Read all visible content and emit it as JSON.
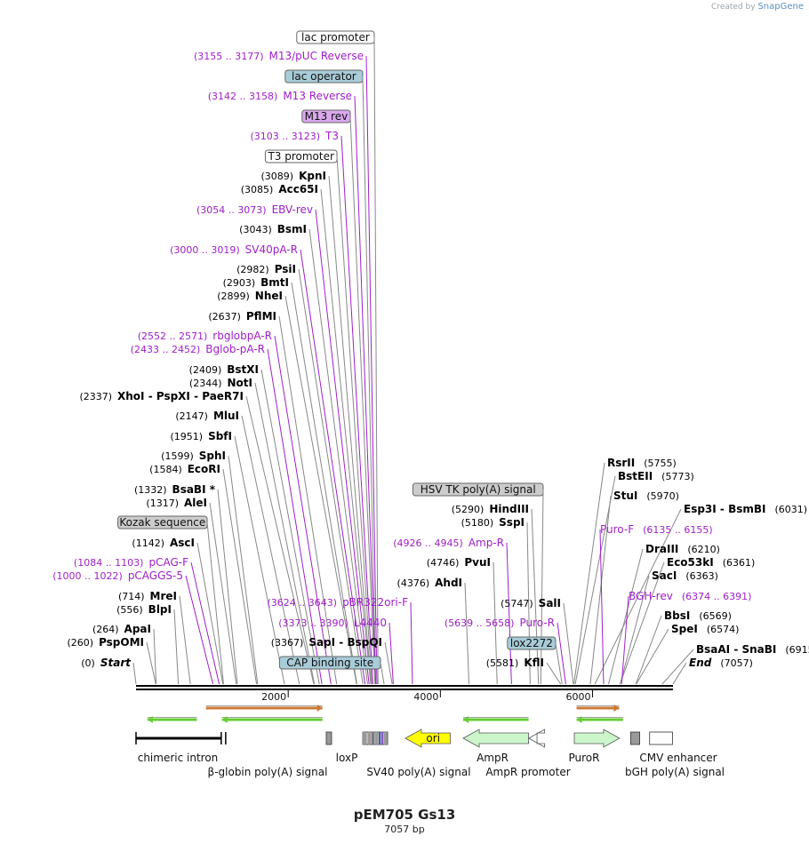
{
  "credit": {
    "prefix": "Created by",
    "brand": "SnapGene"
  },
  "map": {
    "name": "pEM705 Gs13",
    "length_label": "7057 bp",
    "length": 7057,
    "ruler_ticks": [
      "2000",
      "4000",
      "6000"
    ],
    "colors": {
      "enzyme": "#000000",
      "primer": "#a020c8",
      "backbone": "#000000",
      "leader_gray": "#888888"
    },
    "labels": [
      {
        "kind": "boxed",
        "text": "lac promoter",
        "box": "white",
        "pos": 3180
      },
      {
        "kind": "primer",
        "range": "(3155 .. 3177)",
        "text": "M13/pUC Reverse",
        "pos": 3166
      },
      {
        "kind": "boxed",
        "text": "lac operator",
        "box": "teal",
        "pos": 3150
      },
      {
        "kind": "primer",
        "range": "(3142 .. 3158)",
        "text": "M13 Reverse",
        "pos": 3150
      },
      {
        "kind": "boxed",
        "text": "M13 rev",
        "box": "violet",
        "pos": 3140
      },
      {
        "kind": "primer",
        "range": "(3103 .. 3123)",
        "text": "T3",
        "pos": 3113
      },
      {
        "kind": "boxed",
        "text": "T3 promoter",
        "box": "white",
        "pos": 3100
      },
      {
        "kind": "enzyme",
        "range": "(3089)",
        "text": "KpnI",
        "pos": 3089
      },
      {
        "kind": "enzyme",
        "range": "(3085)",
        "text": "Acc65I",
        "pos": 3085
      },
      {
        "kind": "primer",
        "range": "(3054 .. 3073)",
        "text": "EBV-rev",
        "pos": 3063
      },
      {
        "kind": "enzyme",
        "range": "(3043)",
        "text": "BsmI",
        "pos": 3043
      },
      {
        "kind": "primer",
        "range": "(3000 .. 3019)",
        "text": "SV40pA-R",
        "pos": 3010
      },
      {
        "kind": "enzyme",
        "range": "(2982)",
        "text": "PsiI",
        "pos": 2982
      },
      {
        "kind": "enzyme",
        "range": "(2903)",
        "text": "BmtI",
        "pos": 2903
      },
      {
        "kind": "enzyme",
        "range": "(2899)",
        "text": "NheI",
        "pos": 2899
      },
      {
        "kind": "enzyme",
        "range": "(2637)",
        "text": "PflMI",
        "pos": 2637
      },
      {
        "kind": "primer",
        "range": "(2552 .. 2571)",
        "text": "rbglobpA-R",
        "pos": 2562
      },
      {
        "kind": "primer",
        "range": "(2433 .. 2452)",
        "text": "Bglob-pA-R",
        "pos": 2443
      },
      {
        "kind": "enzyme",
        "range": "(2409)",
        "text": "BstXI",
        "pos": 2409
      },
      {
        "kind": "enzyme",
        "range": "(2344)",
        "text": "NotI",
        "pos": 2344
      },
      {
        "kind": "enzyme",
        "range": "(2337)",
        "text": "XhoI  -  PspXI  -  PaeR7I",
        "pos": 2337
      },
      {
        "kind": "enzyme",
        "range": "(2147)",
        "text": "MluI",
        "pos": 2147
      },
      {
        "kind": "enzyme",
        "range": "(1951)",
        "text": "SbfI",
        "pos": 1951
      },
      {
        "kind": "enzyme",
        "range": "(1599)",
        "text": "SphI",
        "pos": 1599
      },
      {
        "kind": "enzyme",
        "range": "(1584)",
        "text": "EcoRI",
        "pos": 1584
      },
      {
        "kind": "enzyme",
        "range": "(1332)",
        "text": "BsaBI *",
        "pos": 1332
      },
      {
        "kind": "enzyme",
        "range": "(1317)",
        "text": "AleI",
        "pos": 1317
      },
      {
        "kind": "boxed",
        "text": "Kozak sequence",
        "box": "gray",
        "pos": 1150
      },
      {
        "kind": "enzyme",
        "range": "(1142)",
        "text": "AscI",
        "pos": 1142
      },
      {
        "kind": "primer",
        "range": "(1084 .. 1103)",
        "text": "pCAG-F",
        "pos": 1093
      },
      {
        "kind": "primer",
        "range": "(1000 .. 1022)",
        "text": "pCAGGS-5",
        "pos": 1011
      },
      {
        "kind": "enzyme",
        "range": "(714)",
        "text": "MreI",
        "pos": 714
      },
      {
        "kind": "enzyme",
        "range": "(556)",
        "text": "BlpI",
        "pos": 556
      },
      {
        "kind": "enzyme",
        "range": "(264)",
        "text": "ApaI",
        "pos": 264
      },
      {
        "kind": "enzyme",
        "range": "(260)",
        "text": "PspOMI",
        "pos": 260
      },
      {
        "kind": "enzyme",
        "range": "(0)",
        "text": "Start",
        "pos": 0
      },
      {
        "kind": "primer",
        "range": "(3624 .. 3643)",
        "text": "pBR322ori-F",
        "pos": 3633
      },
      {
        "kind": "primer",
        "range": "(3373 .. 3390)",
        "text": "L4440",
        "pos": 3381
      },
      {
        "kind": "enzyme",
        "range": "(3367)",
        "text": "SapI  -  BspQI",
        "pos": 3367
      },
      {
        "kind": "boxed",
        "text": "CAP binding site",
        "box": "teal",
        "pos": 3260
      },
      {
        "kind": "enzyme",
        "range": "(4376)",
        "text": "AhdI",
        "pos": 4376
      },
      {
        "kind": "enzyme",
        "range": "(4746)",
        "text": "PvuI",
        "pos": 4746
      },
      {
        "kind": "primer",
        "range": "(4926 .. 4945)",
        "text": "Amp-R",
        "pos": 4935
      },
      {
        "kind": "enzyme",
        "range": "(5180)",
        "text": "SspI",
        "pos": 5180
      },
      {
        "kind": "enzyme",
        "range": "(5290)",
        "text": "HindIII",
        "pos": 5290
      },
      {
        "kind": "boxed",
        "text": "HSV TK poly(A) signal",
        "box": "gray",
        "pos": 5320
      },
      {
        "kind": "enzyme",
        "range": "(5747)",
        "text": "SalI",
        "pos": 5747
      },
      {
        "kind": "primer",
        "range": "(5639 .. 5658)",
        "text": "Puro-R",
        "pos": 5648
      },
      {
        "kind": "boxed",
        "text": "lox2272",
        "box": "teal",
        "pos": 5600
      },
      {
        "kind": "enzyme",
        "range": "(5581)",
        "text": "KflI",
        "pos": 5581
      },
      {
        "kind": "enzyme",
        "range": "(5755)",
        "text": "RsrII",
        "pos": 5755
      },
      {
        "kind": "enzyme",
        "range": "(5773)",
        "text": "BstEII",
        "pos": 5773
      },
      {
        "kind": "enzyme",
        "range": "(5970)",
        "text": "StuI",
        "pos": 5970
      },
      {
        "kind": "enzyme",
        "range": "(6031)",
        "text": "Esp3I  -  BsmBI",
        "pos": 6031
      },
      {
        "kind": "primer",
        "range": "(6135 .. 6155)",
        "text": "Puro-F",
        "pos": 6145
      },
      {
        "kind": "enzyme",
        "range": "(6210)",
        "text": "DraIII",
        "pos": 6210
      },
      {
        "kind": "enzyme",
        "range": "(6361)",
        "text": "Eco53kI",
        "pos": 6361
      },
      {
        "kind": "enzyme",
        "range": "(6363)",
        "text": "SacI",
        "pos": 6363
      },
      {
        "kind": "primer",
        "range": "(6374 .. 6391)",
        "text": "BGH-rev",
        "pos": 6382
      },
      {
        "kind": "enzyme",
        "range": "(6569)",
        "text": "BbsI",
        "pos": 6569
      },
      {
        "kind": "enzyme",
        "range": "(6574)",
        "text": "SpeI",
        "pos": 6574
      },
      {
        "kind": "enzyme",
        "range": "(6915)",
        "text": "BsaAI  -  SnaBI",
        "pos": 6915
      },
      {
        "kind": "enzyme",
        "range": "(7057)",
        "text": "End",
        "pos": 7057
      }
    ],
    "features": [
      {
        "text": "chimeric intron",
        "type": "line",
        "color": "#000000",
        "start": 0,
        "end": 1120
      },
      {
        "text": "β-globin poly(A) signal",
        "type": "bar",
        "color": "#999999",
        "start": 1120,
        "end": 1140
      },
      {
        "text": "loxP",
        "type": "box",
        "color": "#999999",
        "start": 2500,
        "end": 2570
      },
      {
        "text": "SV40 poly(A) signal",
        "type": "group",
        "color": "#999999",
        "start": 2980,
        "end": 3220
      },
      {
        "text": "ori",
        "type": "arrow-left",
        "color": "#ffff00",
        "start": 3540,
        "end": 4130
      },
      {
        "text": "AmpR",
        "type": "arrow-left",
        "color": "#ccf5cc",
        "start": 4300,
        "end": 5160
      },
      {
        "text": "AmpR promoter",
        "type": "arrow-left",
        "color": "#ffffff",
        "start": 5160,
        "end": 5270
      },
      {
        "text": "PuroR",
        "type": "arrow-right",
        "color": "#ccf5cc",
        "start": 5760,
        "end": 6355
      },
      {
        "text": "bGH poly(A) signal",
        "type": "box",
        "color": "#999999",
        "start": 6500,
        "end": 6620
      },
      {
        "text": "CMV enhancer",
        "type": "box",
        "color": "#ffffff",
        "start": 6750,
        "end": 7050
      }
    ],
    "orfs": [
      {
        "color": "#66cc33",
        "dir": "left",
        "start": 150,
        "end": 800
      },
      {
        "color": "#cc7a33",
        "dir": "right",
        "start": 920,
        "end": 2450
      },
      {
        "color": "#66cc33",
        "dir": "left",
        "start": 1130,
        "end": 2450
      },
      {
        "color": "#66cc33",
        "dir": "left",
        "start": 4300,
        "end": 5160
      },
      {
        "color": "#cc7a33",
        "dir": "right",
        "start": 5790,
        "end": 6350
      },
      {
        "color": "#66cc33",
        "dir": "left",
        "start": 5790,
        "end": 6400
      }
    ]
  }
}
